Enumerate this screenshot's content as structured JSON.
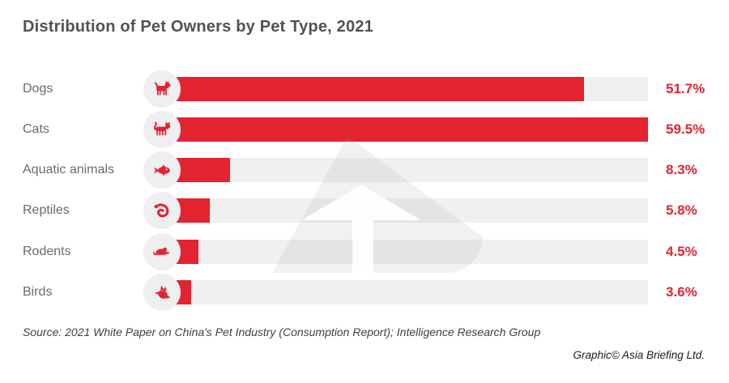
{
  "title": "Distribution of Pet Owners by Pet Type, 2021",
  "chart_data": {
    "type": "bar",
    "orientation": "horizontal",
    "title": "Distribution of Pet Owners by Pet Type, 2021",
    "categories": [
      "Dogs",
      "Cats",
      "Aquatic animals",
      "Reptiles",
      "Rodents",
      "Birds"
    ],
    "values": [
      51.7,
      59.5,
      8.3,
      5.8,
      4.5,
      3.6
    ],
    "value_labels": [
      "51.7%",
      "59.5%",
      "8.3%",
      "5.8%",
      "4.5%",
      "3.6%"
    ],
    "xlabel": "",
    "ylabel": "",
    "xlim": [
      0,
      59.5
    ],
    "grid": false,
    "legend": false,
    "bar_color": "#e42330",
    "track_color": "#f0f0f1",
    "note": "bars scaled so the max value (59.5%) fills the full track"
  },
  "rows": [
    {
      "label": "Dogs",
      "display": "51.7%",
      "icon": "dog-icon"
    },
    {
      "label": "Cats",
      "display": "59.5%",
      "icon": "cat-icon"
    },
    {
      "label": "Aquatic animals",
      "display": "8.3%",
      "icon": "fish-icon"
    },
    {
      "label": "Reptiles",
      "display": "5.8%",
      "icon": "snake-icon"
    },
    {
      "label": "Rodents",
      "display": "4.5%",
      "icon": "mouse-icon"
    },
    {
      "label": "Birds",
      "display": "3.6%",
      "icon": "bird-icon"
    }
  ],
  "footer": {
    "source": "Source: 2021 White Paper on China's Pet Industry (Consumption Report); Intelligence Research Group",
    "credit": "Graphic© Asia Briefing Ltd."
  },
  "colors": {
    "accent_red": "#e42330",
    "track_gray": "#f0f0f1",
    "badge_gray": "#efeff1",
    "title_text": "#4f5257",
    "label_text": "#6a6b6e",
    "source_text": "#3f4043",
    "background": "#ffffff"
  }
}
